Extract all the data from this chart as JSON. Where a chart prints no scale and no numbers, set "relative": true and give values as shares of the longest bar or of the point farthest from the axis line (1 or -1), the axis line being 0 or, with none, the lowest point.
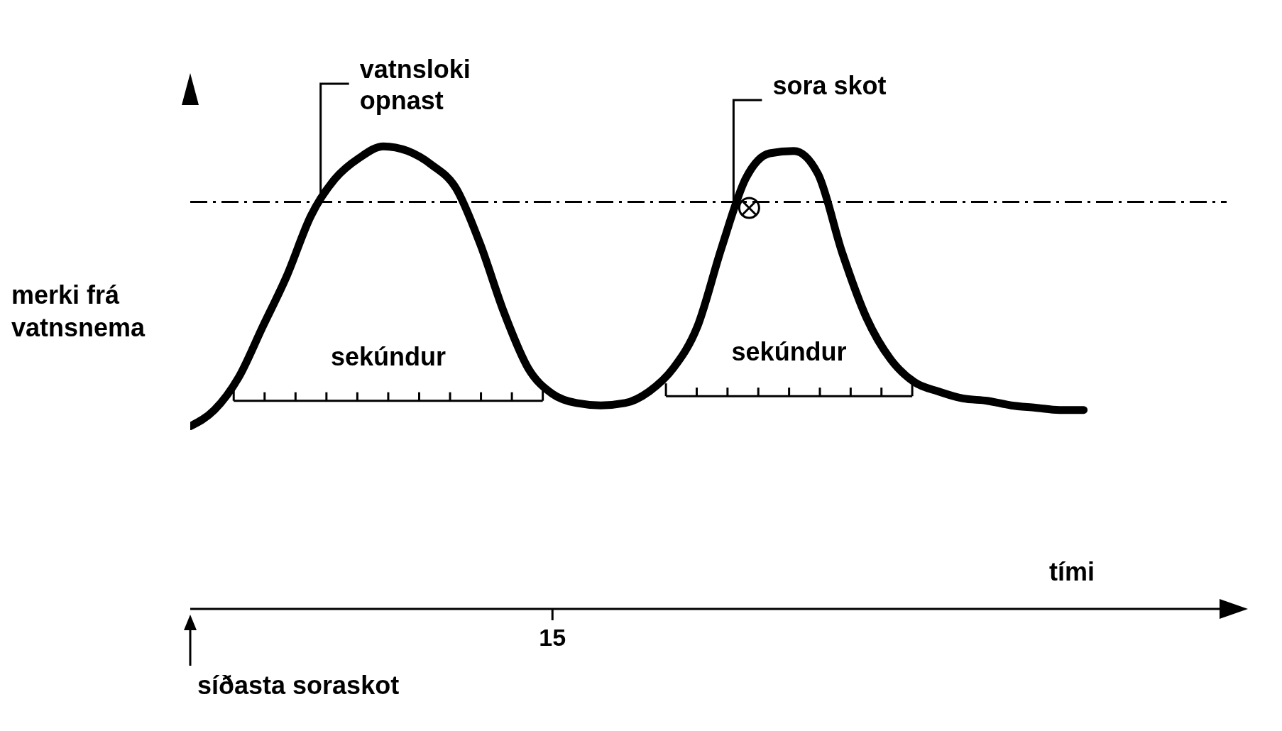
{
  "chart_data": {
    "type": "line",
    "relative": true,
    "xlabel": "tími",
    "ylabel": "merki frá vatnsnema",
    "categories": [
      null,
      null,
      null,
      null,
      null,
      null,
      null,
      null,
      null,
      null,
      null,
      null,
      null,
      null,
      null,
      null,
      null,
      null,
      null,
      null,
      null,
      null,
      null,
      null,
      null,
      null,
      null,
      null,
      null,
      null,
      null,
      null,
      null,
      null,
      null,
      null,
      null,
      null
    ],
    "series": [
      {
        "color": "#000000",
        "values": [
          0.395,
          0.43,
          0.5,
          0.61,
          0.72,
          0.85,
          0.93,
          0.975,
          1.0,
          0.99,
          0.96,
          0.91,
          0.79,
          0.64,
          0.52,
          0.465,
          0.445,
          0.44,
          0.445,
          0.47,
          0.52,
          0.61,
          0.78,
          0.93,
          0.985,
          0.99,
          0.94,
          0.77,
          0.63,
          0.54,
          0.49,
          0.47,
          0.455,
          0.45,
          0.44,
          0.435,
          0.43,
          0.43
        ]
      }
    ],
    "marker": "none",
    "line_style": "solid",
    "grid": false,
    "legend": false,
    "ref_lines": [
      {
        "axis": "y",
        "value": 0.88,
        "label": null,
        "color": "#000000",
        "line_style": "dashed"
      }
    ],
    "annotations": [
      "vatnsloki opnast",
      "sora skot",
      "15",
      "sekúndur",
      "sekúndur",
      "síðasta soraskot"
    ]
  }
}
